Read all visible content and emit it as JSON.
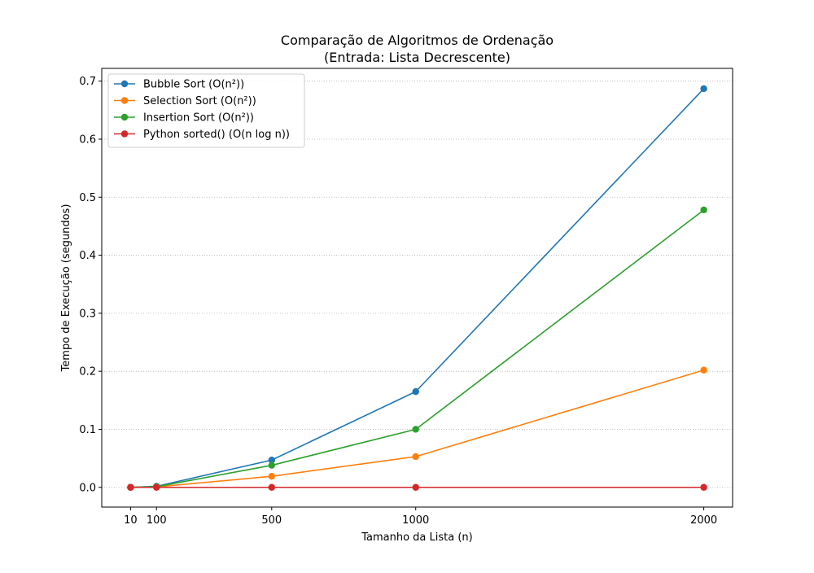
{
  "chart_data": {
    "type": "line",
    "title": "Comparação de Algoritmos de Ordenação",
    "subtitle": "(Entrada: Lista Decrescente)",
    "xlabel": "Tamanho da Lista (n)",
    "ylabel": "Tempo de Execução (segundos)",
    "x": [
      10,
      100,
      500,
      1000,
      2000
    ],
    "xticks": [
      10,
      100,
      500,
      1000,
      2000
    ],
    "yticks": [
      0.0,
      0.1,
      0.2,
      0.3,
      0.4,
      0.5,
      0.6,
      0.7
    ],
    "ytick_labels": [
      "0.0",
      "0.1",
      "0.2",
      "0.3",
      "0.4",
      "0.5",
      "0.6",
      "0.7"
    ],
    "xlim": [
      -90,
      2100
    ],
    "ylim": [
      -0.034,
      0.722
    ],
    "grid": "y-axis dotted",
    "legend_placement": "top-left",
    "series": [
      {
        "name": "Bubble Sort (O(n²))",
        "color": "#1f77b4",
        "values": [
          0.0,
          0.0018,
          0.047,
          0.165,
          0.687
        ]
      },
      {
        "name": "Selection Sort (O(n²))",
        "color": "#ff7f0e",
        "values": [
          0.0,
          0.0008,
          0.019,
          0.053,
          0.202
        ]
      },
      {
        "name": "Insertion Sort (O(n²))",
        "color": "#2ca02c",
        "values": [
          0.0,
          0.0012,
          0.038,
          0.1,
          0.478
        ]
      },
      {
        "name": "Python sorted() (O(n log n))",
        "color": "#d62728",
        "values": [
          0.0,
          0.0,
          0.0,
          0.0,
          0.0
        ]
      }
    ]
  }
}
